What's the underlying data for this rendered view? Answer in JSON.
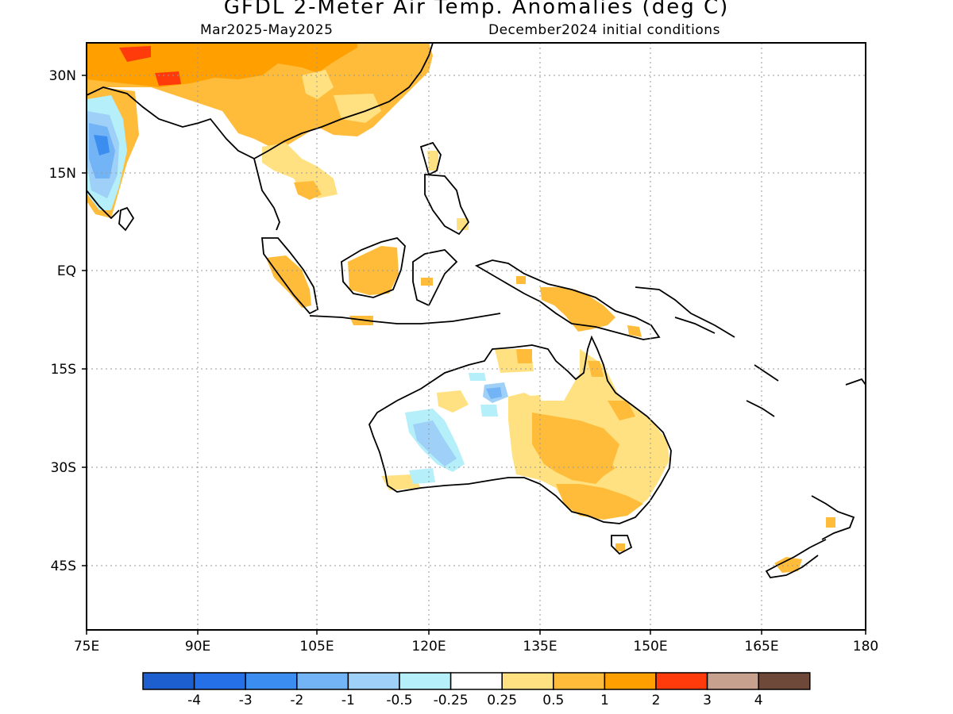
{
  "header": {
    "title": "GFDL 2-Meter Air Temp. Anomalies (deg C)",
    "period": "Mar2025-May2025",
    "init": "December2024 initial conditions"
  },
  "axes": {
    "lat_labels": [
      "30N",
      "15N",
      "EQ",
      "15S",
      "30S",
      "45S"
    ],
    "lon_labels": [
      "75E",
      "90E",
      "105E",
      "120E",
      "135E",
      "150E",
      "165E",
      "180"
    ]
  },
  "colorbar": {
    "labels": [
      "-4",
      "-3",
      "-2",
      "-1",
      "-0.5",
      "-0.25",
      "0.25",
      "0.5",
      "1",
      "2",
      "3",
      "4"
    ],
    "colors": [
      "#1e5fcf",
      "#2570e6",
      "#3b8ef0",
      "#72b4f5",
      "#9fd0f8",
      "#b4effa",
      "#ffffff",
      "#ffe181",
      "#ffbc3a",
      "#ff9f00",
      "#ff3a0b",
      "#c8a08e",
      "#6e4838"
    ]
  }
}
